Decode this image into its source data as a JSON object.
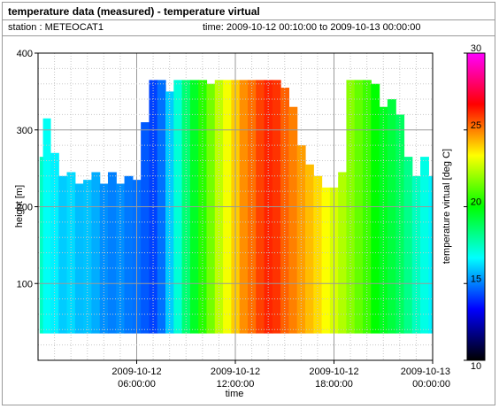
{
  "header": {
    "title": "temperature data (measured) - temperature virtual",
    "station": "station : METEOCAT1",
    "time_range": "time: 2009-10-12 00:10:00 to 2009-10-13 00:00:00"
  },
  "chart_data": {
    "type": "heatmap",
    "xlabel": "time",
    "ylabel": "height [m]",
    "colorbar_label": "temperature virtual [deg C]",
    "x_ticks": [
      {
        "hour": 6,
        "line1": "2009-10-12",
        "line2": "06:00:00"
      },
      {
        "hour": 12,
        "line1": "2009-10-12",
        "line2": "12:00:00"
      },
      {
        "hour": 18,
        "line1": "2009-10-12",
        "line2": "18:00:00"
      },
      {
        "hour": 24,
        "line1": "2009-10-13",
        "line2": "00:00:00"
      }
    ],
    "xlim_hours": [
      0,
      24
    ],
    "y_ticks": [
      100,
      200,
      300,
      400
    ],
    "ylim": [
      0,
      400
    ],
    "colorbar_ticks": [
      10,
      15,
      20,
      25,
      30
    ],
    "colorbar_range": [
      10,
      30
    ],
    "grid": true,
    "data_bottom_m": 35,
    "colormap": [
      "#000000",
      "#0000ff",
      "#00ffff",
      "#00ff00",
      "#ffff00",
      "#ff0000",
      "#ff00ff"
    ],
    "column_hours": [
      0.1,
      0.5,
      1,
      1.5,
      2,
      2.5,
      3,
      3.5,
      4,
      4.5,
      5,
      5.5,
      6,
      6.5,
      7,
      7.5,
      8,
      8.5,
      9,
      9.5,
      10,
      10.5,
      11,
      11.5,
      12,
      12.5,
      13,
      13.5,
      14,
      14.5,
      15,
      15.5,
      16,
      16.5,
      17,
      17.5,
      18,
      18.5,
      19,
      19.5,
      20,
      20.5,
      21,
      21.5,
      22,
      22.5,
      23,
      23.5,
      24
    ],
    "column_top_m": [
      265,
      315,
      270,
      240,
      245,
      230,
      235,
      245,
      230,
      245,
      230,
      240,
      235,
      310,
      365,
      365,
      350,
      365,
      365,
      365,
      365,
      360,
      365,
      365,
      365,
      365,
      365,
      365,
      365,
      365,
      355,
      330,
      280,
      255,
      240,
      225,
      225,
      245,
      365,
      365,
      365,
      360,
      330,
      340,
      320,
      265,
      240,
      265,
      240
    ],
    "column_temp_c": [
      17.5,
      16.8,
      16.5,
      16.0,
      16.2,
      15.8,
      15.9,
      15.6,
      15.2,
      15.0,
      15.2,
      14.9,
      14.8,
      14.5,
      14.2,
      14.8,
      16.0,
      17.2,
      18.5,
      19.5,
      20.5,
      21.5,
      22.5,
      23.2,
      24.0,
      24.8,
      25.2,
      25.8,
      26.2,
      26.0,
      25.4,
      25.0,
      24.6,
      24.2,
      23.8,
      23.3,
      22.8,
      22.3,
      21.8,
      21.3,
      20.8,
      20.0,
      19.6,
      19.2,
      18.8,
      18.2,
      17.5,
      17.0,
      16.5
    ]
  }
}
